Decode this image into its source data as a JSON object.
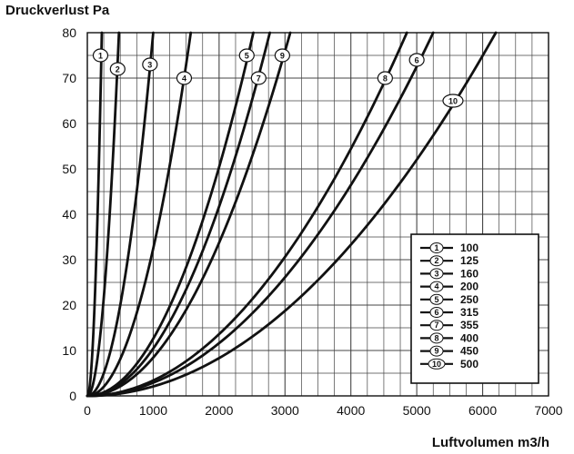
{
  "chart_data": {
    "type": "line",
    "title": "",
    "xlabel": "Luftvolumen m3/h",
    "ylabel": "Druckverlust Pa",
    "xlim": [
      0,
      7000
    ],
    "ylim": [
      0,
      80
    ],
    "xticks": [
      0,
      1000,
      2000,
      3000,
      4000,
      5000,
      6000,
      7000
    ],
    "xtick_labels": [
      "0",
      "1000",
      "2000",
      "3000",
      "4000",
      "5000",
      "6000",
      "7000"
    ],
    "yticks": [
      0,
      10,
      20,
      30,
      40,
      50,
      60,
      70,
      80
    ],
    "ytick_labels": [
      "0",
      "10",
      "20",
      "30",
      "40",
      "50",
      "60",
      "70",
      "80"
    ],
    "grid": true,
    "legend_position": "bottom-right",
    "colors": {
      "line": "#111111",
      "grid": "#444444",
      "background": "#ffffff"
    },
    "series": [
      {
        "name": "100",
        "marker": "1",
        "x_at_top": 220,
        "marker_x": 200,
        "marker_y": 75,
        "exponent": 2
      },
      {
        "name": "125",
        "marker": "2",
        "x_at_top": 480,
        "marker_x": 460,
        "marker_y": 72,
        "exponent": 2
      },
      {
        "name": "160",
        "marker": "3",
        "x_at_top": 1000,
        "marker_x": 950,
        "marker_y": 73,
        "exponent": 2
      },
      {
        "name": "200",
        "marker": "4",
        "x_at_top": 1570,
        "marker_x": 1470,
        "marker_y": 70,
        "exponent": 2
      },
      {
        "name": "250",
        "marker": "5",
        "x_at_top": 2520,
        "marker_x": 2420,
        "marker_y": 75,
        "exponent": 2
      },
      {
        "name": "315",
        "marker": "6",
        "x_at_top": 5250,
        "marker_x": 5000,
        "marker_y": 74,
        "exponent": 2
      },
      {
        "name": "355",
        "marker": "7",
        "x_at_top": 2770,
        "marker_x": 2600,
        "marker_y": 70,
        "exponent": 2
      },
      {
        "name": "400",
        "marker": "8",
        "x_at_top": 4850,
        "marker_x": 4520,
        "marker_y": 70,
        "exponent": 2
      },
      {
        "name": "450",
        "marker": "9",
        "x_at_top": 3080,
        "marker_x": 2960,
        "marker_y": 75,
        "exponent": 2
      },
      {
        "name": "500",
        "marker": "10",
        "x_at_top": 6200,
        "marker_x": 5550,
        "marker_y": 65,
        "exponent": 2
      }
    ]
  }
}
